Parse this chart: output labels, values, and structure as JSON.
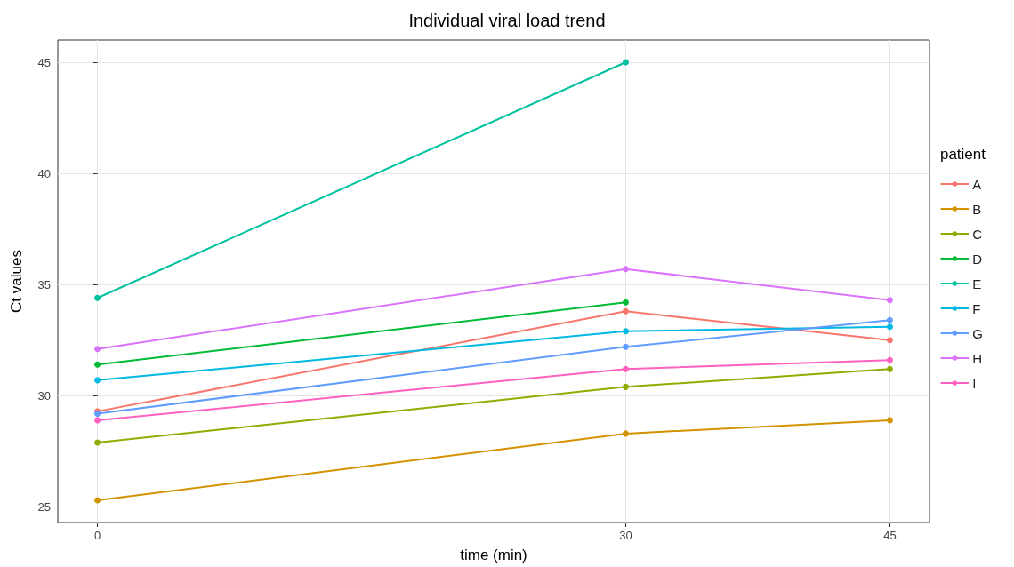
{
  "chart_data": {
    "type": "line",
    "title": "Individual viral load trend",
    "xlabel": "time (min)",
    "ylabel": "Ct values",
    "legend_title": "patient",
    "x": [
      0,
      30,
      45
    ],
    "xlim": [
      -2.25,
      47.25
    ],
    "xticks": [
      0,
      30,
      45
    ],
    "ylim": [
      24.3,
      46
    ],
    "yticks": [
      25,
      30,
      35,
      40,
      45
    ],
    "grid": true,
    "legend": "right",
    "marker": "circle",
    "line_style": "solid",
    "series": [
      {
        "name": "A",
        "color": "#f8766d",
        "values": [
          29.3,
          33.8,
          32.5
        ]
      },
      {
        "name": "B",
        "color": "#d39200",
        "values": [
          25.3,
          28.3,
          28.9
        ]
      },
      {
        "name": "C",
        "color": "#93aa00",
        "values": [
          27.9,
          30.4,
          31.2
        ]
      },
      {
        "name": "D",
        "color": "#00ba38",
        "values": [
          31.4,
          34.2,
          null
        ]
      },
      {
        "name": "E",
        "color": "#00c19f",
        "values": [
          34.4,
          45,
          null
        ]
      },
      {
        "name": "F",
        "color": "#00b9e3",
        "values": [
          30.7,
          32.9,
          33.1
        ]
      },
      {
        "name": "G",
        "color": "#619cff",
        "values": [
          29.2,
          32.2,
          33.4
        ]
      },
      {
        "name": "H",
        "color": "#db72fb",
        "values": [
          32.1,
          35.7,
          34.3
        ]
      },
      {
        "name": "I",
        "color": "#ff61c3",
        "values": [
          28.9,
          31.2,
          31.6
        ]
      }
    ]
  }
}
